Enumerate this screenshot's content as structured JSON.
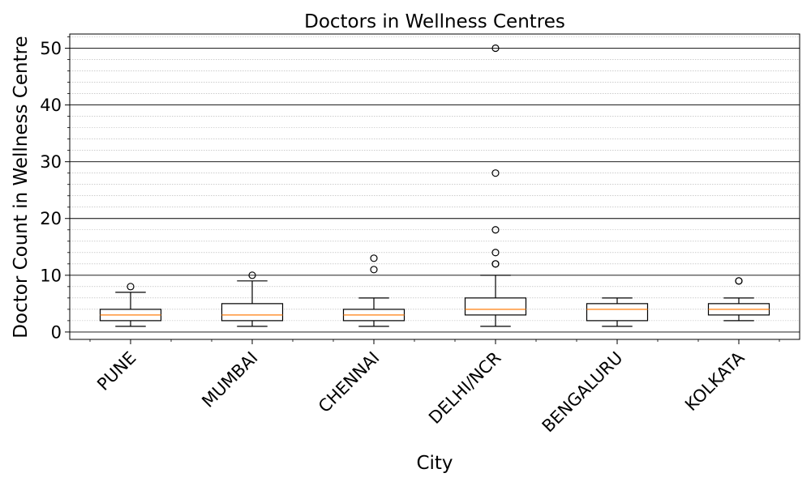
{
  "chart_data": {
    "type": "box",
    "title": "Doctors in Wellness Centres",
    "xlabel": "City",
    "ylabel": "Doctor Count in Wellness Centre",
    "ylim": [
      -1.3,
      52.5
    ],
    "yticks": [
      0,
      10,
      20,
      30,
      40,
      50
    ],
    "grid": {
      "major": true,
      "minor": true,
      "axis": "y"
    },
    "categories": [
      "PUNE",
      "MUMBAI",
      "CHENNAI",
      "DELHI/NCR",
      "BENGALURU",
      "KOLKATA"
    ],
    "boxes": [
      {
        "whisker_low": 1,
        "q1": 2,
        "median": 3,
        "q3": 4,
        "whisker_high": 7,
        "fliers": [
          8
        ]
      },
      {
        "whisker_low": 1,
        "q1": 2,
        "median": 3,
        "q3": 5,
        "whisker_high": 9,
        "fliers": [
          10
        ]
      },
      {
        "whisker_low": 1,
        "q1": 2,
        "median": 3,
        "q3": 4,
        "whisker_high": 6,
        "fliers": [
          11,
          13
        ]
      },
      {
        "whisker_low": 1,
        "q1": 3,
        "median": 4,
        "q3": 6,
        "whisker_high": 10,
        "fliers": [
          12,
          12,
          14,
          18,
          28,
          50
        ]
      },
      {
        "whisker_low": 1,
        "q1": 2,
        "median": 4,
        "q3": 5,
        "whisker_high": 6,
        "fliers": []
      },
      {
        "whisker_low": 2,
        "q1": 3,
        "median": 4,
        "q3": 5,
        "whisker_high": 6,
        "fliers": [
          9,
          9
        ]
      }
    ],
    "colors": {
      "median": "#ff7f0e",
      "box": "#000000",
      "grid_major": "#000000",
      "grid_minor": "#b0b0b0"
    }
  }
}
